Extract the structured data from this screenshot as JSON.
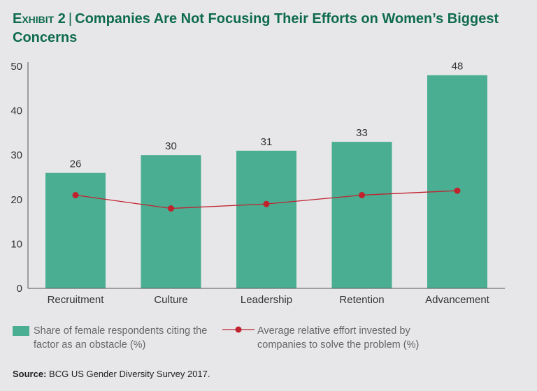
{
  "title": {
    "exhibit": "Exhibit 2",
    "text": "Companies Are Not Focusing Their Efforts on Women’s Biggest Concerns"
  },
  "source": {
    "label": "Source:",
    "text": "BCG US Gender Diversity Survey 2017."
  },
  "colors": {
    "bar": "#4aae93",
    "line": "#c0232e",
    "title": "#0f6b4d",
    "background": "#e7e7e9"
  },
  "chart_data": {
    "type": "bar",
    "categories": [
      "Recruitment",
      "Culture",
      "Leadership",
      "Retention",
      "Advancement"
    ],
    "series": [
      {
        "name": "Share of female respondents citing the factor as an obstacle (%)",
        "type": "bar",
        "values": [
          26,
          30,
          31,
          33,
          48
        ],
        "data_labels": [
          "26",
          "30",
          "31",
          "33",
          "48"
        ]
      },
      {
        "name": "Average relative effort invested by companies to solve the problem (%)",
        "type": "line",
        "values": [
          21,
          18,
          19,
          21,
          22
        ]
      }
    ],
    "ylim": [
      0,
      50
    ],
    "yticks": [
      "0",
      "10",
      "20",
      "30",
      "40",
      "50"
    ],
    "grid": false,
    "legend": "bottom"
  }
}
